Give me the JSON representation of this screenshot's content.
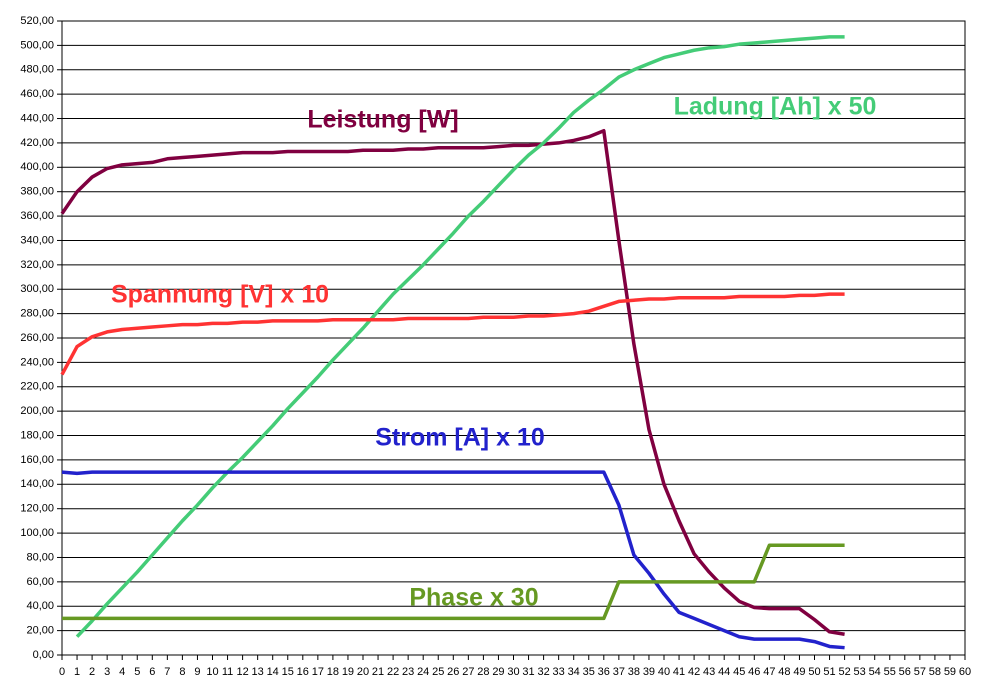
{
  "chart_data": {
    "type": "line",
    "x": [
      0,
      1,
      2,
      3,
      4,
      5,
      6,
      7,
      8,
      9,
      10,
      11,
      12,
      13,
      14,
      15,
      16,
      17,
      18,
      19,
      20,
      21,
      22,
      23,
      24,
      25,
      26,
      27,
      28,
      29,
      30,
      31,
      32,
      33,
      34,
      35,
      36,
      37,
      38,
      39,
      40,
      41,
      42,
      43,
      44,
      45,
      46,
      47,
      48,
      49,
      50,
      51,
      52
    ],
    "series": [
      {
        "name": "Leistung [W]",
        "color": "#800040",
        "values": [
          362,
          380,
          392,
          399,
          402,
          403,
          404,
          407,
          408,
          409,
          410,
          411,
          412,
          412,
          412,
          413,
          413,
          413,
          413,
          413,
          414,
          414,
          414,
          415,
          415,
          416,
          416,
          416,
          416,
          417,
          418,
          418,
          419,
          420,
          422,
          425,
          430,
          340,
          255,
          185,
          140,
          110,
          83,
          68,
          55,
          44,
          39,
          38,
          38,
          38,
          29,
          19,
          17
        ]
      },
      {
        "name": "Ladung [Ah] x 50",
        "color": "#44cc77",
        "values": [
          null,
          15,
          28,
          42,
          55,
          68,
          82,
          96,
          110,
          123,
          137,
          150,
          162,
          175,
          188,
          202,
          215,
          228,
          242,
          255,
          268,
          282,
          296,
          308,
          320,
          333,
          346,
          360,
          372,
          385,
          398,
          410,
          420,
          432,
          445,
          455,
          464,
          474,
          480,
          485,
          490,
          493,
          496,
          498,
          499,
          501,
          502,
          503,
          504,
          505,
          506,
          507,
          507
        ]
      },
      {
        "name": "Spannung [V] x 10",
        "color": "#ff3333",
        "values": [
          230,
          253,
          261,
          265,
          267,
          268,
          269,
          270,
          271,
          271,
          272,
          272,
          273,
          273,
          274,
          274,
          274,
          274,
          275,
          275,
          275,
          275,
          275,
          276,
          276,
          276,
          276,
          276,
          277,
          277,
          277,
          278,
          278,
          279,
          280,
          282,
          286,
          290,
          291,
          292,
          292,
          293,
          293,
          293,
          293,
          294,
          294,
          294,
          294,
          295,
          295,
          296,
          296
        ]
      },
      {
        "name": "Strom [A] x 10",
        "color": "#2222cc",
        "values": [
          150,
          149,
          150,
          150,
          150,
          150,
          150,
          150,
          150,
          150,
          150,
          150,
          150,
          150,
          150,
          150,
          150,
          150,
          150,
          150,
          150,
          150,
          150,
          150,
          150,
          150,
          150,
          150,
          150,
          150,
          150,
          150,
          150,
          150,
          150,
          150,
          150,
          123,
          82,
          67,
          50,
          35,
          30,
          25,
          20,
          15,
          13,
          13,
          13,
          13,
          11,
          7,
          6
        ]
      },
      {
        "name": "Phase x 30",
        "color": "#669922",
        "values": [
          30,
          30,
          30,
          30,
          30,
          30,
          30,
          30,
          30,
          30,
          30,
          30,
          30,
          30,
          30,
          30,
          30,
          30,
          30,
          30,
          30,
          30,
          30,
          30,
          30,
          30,
          30,
          30,
          30,
          30,
          30,
          30,
          30,
          30,
          30,
          30,
          30,
          60,
          60,
          60,
          60,
          60,
          60,
          60,
          60,
          60,
          60,
          90,
          90,
          90,
          90,
          90,
          90
        ]
      }
    ],
    "xlim": [
      0,
      60
    ],
    "xticks": [
      0,
      1,
      2,
      3,
      4,
      5,
      6,
      7,
      8,
      9,
      10,
      11,
      12,
      13,
      14,
      15,
      16,
      17,
      18,
      19,
      20,
      21,
      22,
      23,
      24,
      25,
      26,
      27,
      28,
      29,
      30,
      31,
      32,
      33,
      34,
      35,
      36,
      37,
      38,
      39,
      40,
      41,
      42,
      43,
      44,
      45,
      46,
      47,
      48,
      49,
      50,
      51,
      52,
      53,
      54,
      55,
      56,
      57,
      58,
      59,
      60
    ],
    "ylim": [
      0,
      520
    ],
    "yticks": [
      {
        "value": 0,
        "label": "0,00"
      },
      {
        "value": 20,
        "label": "20,00"
      },
      {
        "value": 40,
        "label": "40,00"
      },
      {
        "value": 60,
        "label": "60,00"
      },
      {
        "value": 80,
        "label": "80,00"
      },
      {
        "value": 100,
        "label": "100,00"
      },
      {
        "value": 120,
        "label": "120,00"
      },
      {
        "value": 140,
        "label": "140,00"
      },
      {
        "value": 160,
        "label": "160,00"
      },
      {
        "value": 180,
        "label": "180,00"
      },
      {
        "value": 200,
        "label": "200,00"
      },
      {
        "value": 220,
        "label": "220,00"
      },
      {
        "value": 240,
        "label": "240,00"
      },
      {
        "value": 260,
        "label": "260,00"
      },
      {
        "value": 280,
        "label": "280,00"
      },
      {
        "value": 300,
        "label": "300,00"
      },
      {
        "value": 320,
        "label": "320,00"
      },
      {
        "value": 340,
        "label": "340,00"
      },
      {
        "value": 360,
        "label": "360,00"
      },
      {
        "value": 380,
        "label": "380,00"
      },
      {
        "value": 400,
        "label": "400,00"
      },
      {
        "value": 420,
        "label": "420,00"
      },
      {
        "value": 440,
        "label": "440,00"
      },
      {
        "value": 460,
        "label": "460,00"
      },
      {
        "value": 480,
        "label": "480,00"
      },
      {
        "value": 500,
        "label": "500,00"
      },
      {
        "value": 520,
        "label": "520,00"
      }
    ],
    "grid": true
  }
}
